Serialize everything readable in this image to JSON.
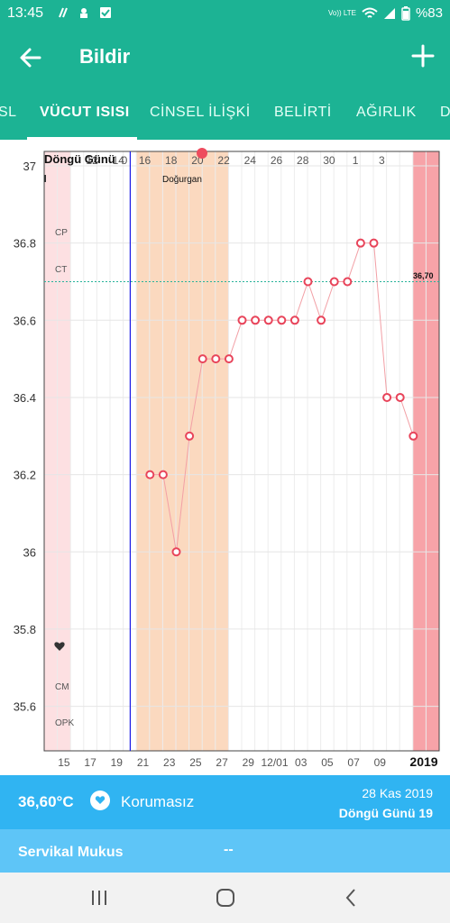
{
  "status_bar": {
    "time": "13:45",
    "network": "Vo)) LTE",
    "battery": "%83"
  },
  "app_bar": {
    "title": "Bildir",
    "back_icon": "arrow-left",
    "add_icon": "plus"
  },
  "tabs": [
    {
      "label": "SL"
    },
    {
      "label": "VÜCUT ISISI",
      "active": true
    },
    {
      "label": "CİNSEL İLİŞKİ"
    },
    {
      "label": "BELİRTİ"
    },
    {
      "label": "AĞIRLIK"
    },
    {
      "label": "D"
    }
  ],
  "chart_data": {
    "type": "line",
    "title": "Döngü Günü",
    "top_axis_labels": [
      "0",
      "12",
      "14",
      "16",
      "18",
      "20",
      "22",
      "24",
      "26",
      "28",
      "30",
      "1",
      "3"
    ],
    "bottom_axis_labels": [
      "15",
      "17",
      "19",
      "21",
      "23",
      "25",
      "27",
      "29",
      "12/01",
      "03",
      "05",
      "07",
      "09",
      "2019"
    ],
    "y_ticks": [
      "37",
      "36.8",
      "36.6",
      "36.4",
      "36.2",
      "36",
      "35.8",
      "35.6"
    ],
    "ylim": [
      35.5,
      37.0
    ],
    "row_labels": [
      "CP",
      "CT",
      "CM",
      "OPK"
    ],
    "fertile_label": "Doğurgan",
    "coverline": {
      "value": 36.7,
      "label": "36,70"
    },
    "series": [
      {
        "values": [
          36.2,
          36.2,
          36.0,
          36.3,
          36.5,
          36.5,
          36.5,
          36.6,
          36.6,
          36.6,
          36.6,
          36.6,
          36.7,
          36.6,
          36.7,
          36.7,
          36.8,
          36.8,
          36.4,
          36.4,
          36.3
        ]
      }
    ],
    "colors": {
      "line": "#f2a0a6",
      "point": "#e8445a",
      "fertile": "#fbd9bf",
      "period": "#f7a3a8",
      "period_light": "#fde0e2",
      "ovulation": "#1a1ae6",
      "coverline": "#27b39a"
    }
  },
  "summary": {
    "temperature": "36,60°C",
    "protection": "Korumasız",
    "date": "28 Kas 2019",
    "cycle_day": "Döngü Günü 19"
  },
  "mucus": {
    "label": "Servikal Mukus",
    "value": "--"
  },
  "nav": [
    "recents-icon",
    "home-icon",
    "back-icon"
  ]
}
